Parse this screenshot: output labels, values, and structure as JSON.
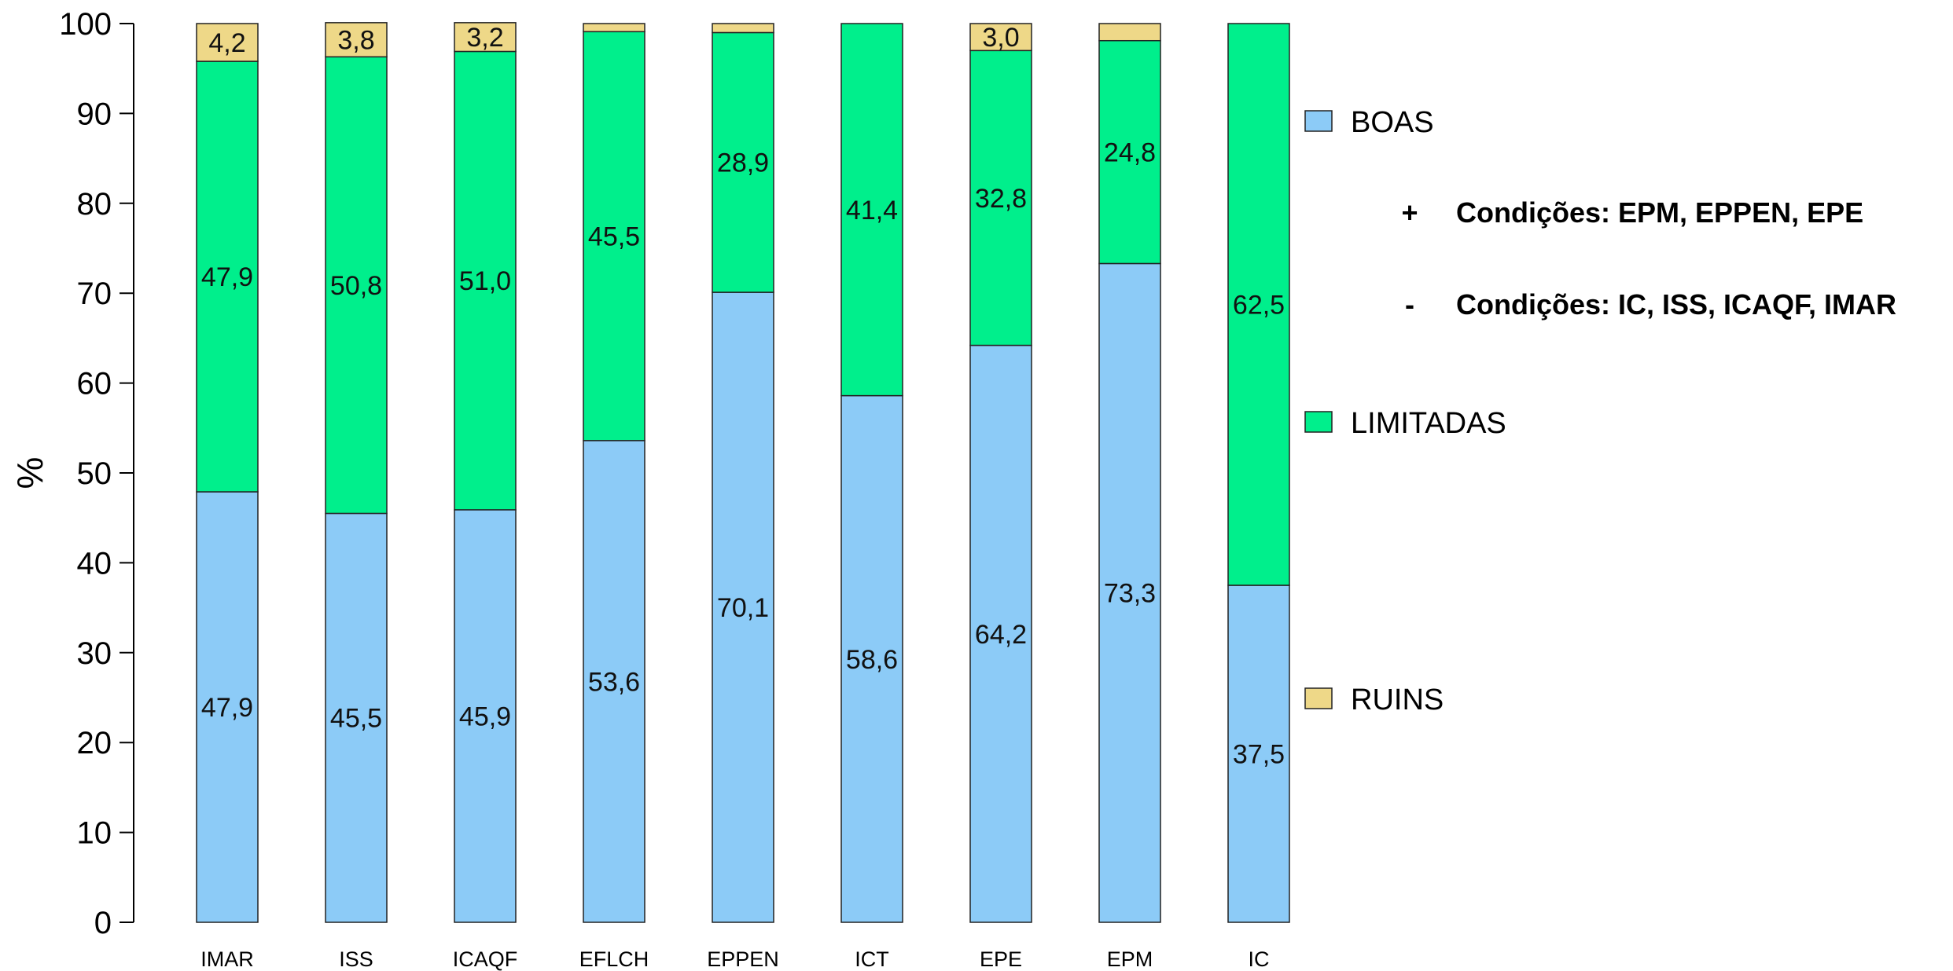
{
  "chart_data": {
    "type": "bar",
    "stacked": true,
    "categories": [
      "IMAR",
      "ISS",
      "ICAQF",
      "EFLCH",
      "EPPEN",
      "ICT",
      "EPE",
      "EPM",
      "IC"
    ],
    "series": [
      {
        "name": "BOAS",
        "color": "#8ccbf7",
        "values": [
          47.9,
          45.5,
          45.9,
          53.6,
          70.1,
          58.6,
          64.2,
          73.3,
          37.5
        ],
        "labels": [
          "47,9",
          "45,5",
          "45,9",
          "53,6",
          "70,1",
          "58,6",
          "64,2",
          "73,3",
          "37,5"
        ]
      },
      {
        "name": "LIMITADAS",
        "color": "#00ef8c",
        "values": [
          47.9,
          50.8,
          51.0,
          45.5,
          28.9,
          41.4,
          32.8,
          24.8,
          62.5
        ],
        "labels": [
          "47,9",
          "50,8",
          "51,0",
          "45,5",
          "28,9",
          "41,4",
          "32,8",
          "24,8",
          "62,5"
        ]
      },
      {
        "name": "RUINS",
        "color": "#eed888",
        "values": [
          4.2,
          3.8,
          3.2,
          0.9,
          1.0,
          0.0,
          3.0,
          1.9,
          0.0
        ],
        "labels": [
          "4,2",
          "3,8",
          "3,2",
          "",
          "",
          "",
          "3,0",
          "",
          ""
        ]
      }
    ],
    "ylabel": "%",
    "xlabel": "",
    "ylim": [
      0,
      100
    ],
    "yticks": [
      "0",
      "10",
      "20",
      "30",
      "40",
      "50",
      "60",
      "70",
      "80",
      "90",
      "100"
    ],
    "grid": false,
    "legend_position": "right",
    "annotations": [
      {
        "symbol": "+",
        "text": "Condições: EPM, EPPEN, EPE"
      },
      {
        "symbol": "-",
        "text": "Condições: IC, ISS, ICAQF, IMAR"
      }
    ]
  }
}
